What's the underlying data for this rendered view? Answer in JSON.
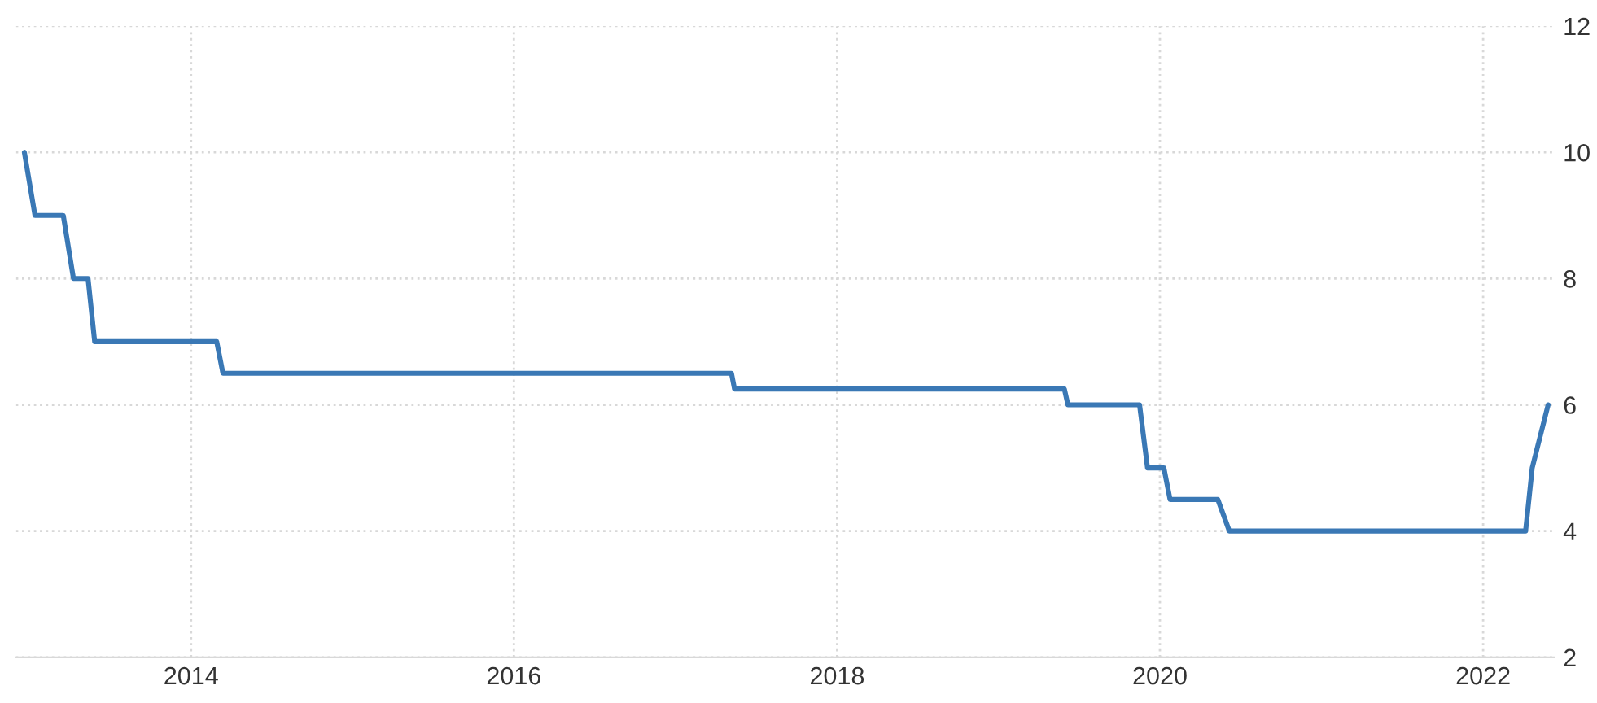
{
  "chart_data": {
    "type": "line",
    "x": [
      "2012-12-20",
      "2013-01-13",
      "2013-03-18",
      "2013-04-10",
      "2013-05-13",
      "2013-05-28",
      "2014-02-28",
      "2014-03-14",
      "2017-05-07",
      "2017-05-14",
      "2019-05-30",
      "2019-06-07",
      "2019-11-16",
      "2019-12-04",
      "2020-01-10",
      "2020-01-24",
      "2020-05-11",
      "2020-06-06",
      "2022-04-07",
      "2022-04-22",
      "2022-05-28"
    ],
    "series": [
      {
        "color": "#3a78b5",
        "values": [
          10,
          9,
          9,
          8,
          8,
          7,
          7,
          6.5,
          6.5,
          6.25,
          6.25,
          6,
          6,
          5,
          5,
          4.5,
          4.5,
          4,
          4,
          5,
          6
        ]
      }
    ],
    "xlim": [
      "2012-12-01",
      "2022-06-10"
    ],
    "xticks": [
      {
        "value": "2014",
        "label": "2014"
      },
      {
        "value": "2016",
        "label": "2016"
      },
      {
        "value": "2018",
        "label": "2018"
      },
      {
        "value": "2020",
        "label": "2020"
      },
      {
        "value": "2022",
        "label": "2022"
      }
    ],
    "ylim": [
      2,
      12
    ],
    "yticks": [
      2,
      4,
      6,
      8,
      10,
      12
    ],
    "grid": true,
    "marker": "none",
    "line_style": "solid",
    "legend": false
  }
}
